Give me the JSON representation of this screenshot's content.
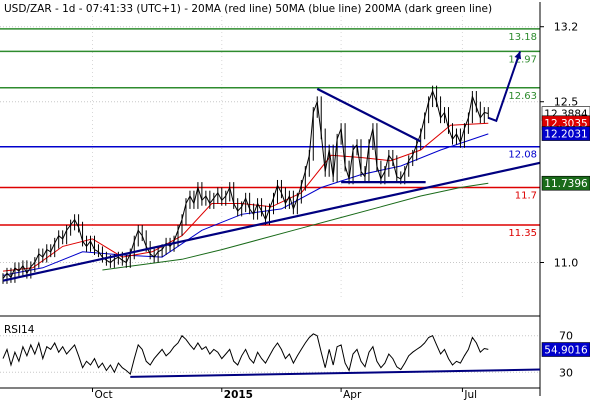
{
  "header": {
    "title": "USD/ZAR - 1d - 07:41:33 (UTC+1) - 20MA (red line) 50MA (blue line) 200MA (dark green line)"
  },
  "chart_data": [
    {
      "type": "candlestick",
      "symbol": "USD/ZAR",
      "timeframe": "1d",
      "ylim": [
        10.65,
        13.3
      ],
      "x_tick_labels": [
        "Oct",
        "2015",
        "Apr",
        "Jul"
      ],
      "y_tick_labels": [
        11.0,
        12.5,
        13.2
      ],
      "horizontal_levels": [
        {
          "value": 13.18,
          "label": "13.18",
          "color": "#2e8b2e"
        },
        {
          "value": 12.97,
          "label": "12.97",
          "color": "#2e8b2e"
        },
        {
          "value": 12.63,
          "label": "12.63",
          "color": "#2e8b2e"
        },
        {
          "value": 12.08,
          "label": "12.08",
          "color": "#0000cc"
        },
        {
          "value": 11.7,
          "label": "11.7",
          "color": "#dd0000"
        },
        {
          "value": 11.35,
          "label": "11.35",
          "color": "#dd0000"
        }
      ],
      "price_boxes": [
        {
          "value": 12.3884,
          "label": "12.3884",
          "bg": "#ffffff",
          "fg": "#000000"
        },
        {
          "value": 12.3035,
          "label": "12.3035",
          "bg": "#dd0000",
          "fg": "#ffffff"
        },
        {
          "value": 12.2031,
          "label": "12.2031",
          "bg": "#0000cc",
          "fg": "#ffffff"
        },
        {
          "value": 11.7396,
          "label": "11.7396",
          "bg": "#1a6b1a",
          "fg": "#ffffff"
        }
      ],
      "price_path": [
        [
          0,
          10.85
        ],
        [
          4,
          10.9
        ],
        [
          8,
          10.86
        ],
        [
          12,
          10.95
        ],
        [
          16,
          10.92
        ],
        [
          20,
          10.97
        ],
        [
          24,
          10.9
        ],
        [
          28,
          10.96
        ],
        [
          32,
          11.0
        ],
        [
          36,
          11.08
        ],
        [
          40,
          11.05
        ],
        [
          44,
          11.12
        ],
        [
          48,
          11.1
        ],
        [
          52,
          11.18
        ],
        [
          56,
          11.25
        ],
        [
          60,
          11.22
        ],
        [
          64,
          11.3
        ],
        [
          68,
          11.35
        ],
        [
          72,
          11.4
        ],
        [
          76,
          11.33
        ],
        [
          80,
          11.2
        ],
        [
          84,
          11.15
        ],
        [
          88,
          11.2
        ],
        [
          92,
          11.12
        ],
        [
          96,
          11.1
        ],
        [
          100,
          11.05
        ],
        [
          104,
          11.02
        ],
        [
          108,
          11.0
        ],
        [
          112,
          11.03
        ],
        [
          116,
          11.05
        ],
        [
          120,
          11.02
        ],
        [
          124,
          11.0
        ],
        [
          128,
          11.08
        ],
        [
          132,
          11.2
        ],
        [
          136,
          11.3
        ],
        [
          140,
          11.25
        ],
        [
          144,
          11.15
        ],
        [
          148,
          11.08
        ],
        [
          152,
          11.05
        ],
        [
          156,
          11.1
        ],
        [
          160,
          11.12
        ],
        [
          164,
          11.18
        ],
        [
          168,
          11.15
        ],
        [
          172,
          11.2
        ],
        [
          176,
          11.3
        ],
        [
          180,
          11.4
        ],
        [
          184,
          11.55
        ],
        [
          188,
          11.62
        ],
        [
          192,
          11.55
        ],
        [
          196,
          11.7
        ],
        [
          200,
          11.58
        ],
        [
          204,
          11.62
        ],
        [
          208,
          11.55
        ],
        [
          212,
          11.6
        ],
        [
          216,
          11.65
        ],
        [
          220,
          11.58
        ],
        [
          224,
          11.62
        ],
        [
          228,
          11.7
        ],
        [
          232,
          11.55
        ],
        [
          236,
          11.48
        ],
        [
          240,
          11.52
        ],
        [
          244,
          11.6
        ],
        [
          248,
          11.5
        ],
        [
          252,
          11.45
        ],
        [
          256,
          11.55
        ],
        [
          260,
          11.48
        ],
        [
          264,
          11.4
        ],
        [
          268,
          11.5
        ],
        [
          272,
          11.6
        ],
        [
          276,
          11.72
        ],
        [
          280,
          11.65
        ],
        [
          284,
          11.55
        ],
        [
          288,
          11.62
        ],
        [
          292,
          11.5
        ],
        [
          296,
          11.6
        ],
        [
          300,
          11.72
        ],
        [
          304,
          11.85
        ],
        [
          308,
          12.0
        ],
        [
          312,
          12.4
        ],
        [
          316,
          12.5
        ],
        [
          320,
          12.2
        ],
        [
          324,
          11.85
        ],
        [
          328,
          12.05
        ],
        [
          332,
          11.8
        ],
        [
          336,
          12.15
        ],
        [
          340,
          12.25
        ],
        [
          344,
          11.9
        ],
        [
          348,
          11.78
        ],
        [
          352,
          12.05
        ],
        [
          356,
          12.1
        ],
        [
          360,
          11.85
        ],
        [
          364,
          11.8
        ],
        [
          368,
          12.1
        ],
        [
          372,
          12.25
        ],
        [
          376,
          11.9
        ],
        [
          380,
          11.78
        ],
        [
          384,
          11.85
        ],
        [
          388,
          12.0
        ],
        [
          392,
          11.95
        ],
        [
          396,
          11.8
        ],
        [
          400,
          11.78
        ],
        [
          404,
          11.85
        ],
        [
          408,
          11.95
        ],
        [
          412,
          12.0
        ],
        [
          416,
          12.1
        ],
        [
          420,
          12.2
        ],
        [
          424,
          12.35
        ],
        [
          428,
          12.5
        ],
        [
          432,
          12.6
        ],
        [
          436,
          12.5
        ],
        [
          440,
          12.35
        ],
        [
          444,
          12.4
        ],
        [
          448,
          12.25
        ],
        [
          452,
          12.15
        ],
        [
          456,
          12.2
        ],
        [
          460,
          12.12
        ],
        [
          464,
          12.25
        ],
        [
          468,
          12.35
        ],
        [
          472,
          12.55
        ],
        [
          476,
          12.45
        ],
        [
          480,
          12.35
        ],
        [
          484,
          12.4
        ],
        [
          488,
          12.39
        ]
      ],
      "ma20": [
        [
          0,
          10.92
        ],
        [
          30,
          10.95
        ],
        [
          60,
          11.15
        ],
        [
          90,
          11.22
        ],
        [
          120,
          11.05
        ],
        [
          150,
          11.1
        ],
        [
          180,
          11.25
        ],
        [
          210,
          11.55
        ],
        [
          240,
          11.55
        ],
        [
          270,
          11.52
        ],
        [
          300,
          11.65
        ],
        [
          330,
          12.0
        ],
        [
          360,
          11.98
        ],
        [
          390,
          11.95
        ],
        [
          420,
          12.05
        ],
        [
          450,
          12.28
        ],
        [
          488,
          12.3
        ]
      ],
      "ma50": [
        [
          0,
          10.88
        ],
        [
          40,
          10.95
        ],
        [
          80,
          11.1
        ],
        [
          120,
          11.07
        ],
        [
          160,
          11.05
        ],
        [
          200,
          11.3
        ],
        [
          240,
          11.45
        ],
        [
          280,
          11.5
        ],
        [
          320,
          11.7
        ],
        [
          360,
          11.82
        ],
        [
          400,
          11.9
        ],
        [
          440,
          12.05
        ],
        [
          488,
          12.2
        ]
      ],
      "ma200": [
        [
          100,
          10.93
        ],
        [
          140,
          10.98
        ],
        [
          180,
          11.03
        ],
        [
          220,
          11.12
        ],
        [
          260,
          11.22
        ],
        [
          300,
          11.32
        ],
        [
          340,
          11.42
        ],
        [
          380,
          11.52
        ],
        [
          420,
          11.62
        ],
        [
          460,
          11.7
        ],
        [
          488,
          11.74
        ]
      ],
      "trendlines": [
        {
          "name": "ascending-support-line",
          "points": [
            [
              0,
              10.83
            ],
            [
              540,
              11.93
            ]
          ],
          "color": "#000080"
        },
        {
          "name": "descending-resistance-line",
          "points": [
            [
              316,
              12.62
            ],
            [
              420,
              12.13
            ]
          ],
          "color": "#000080"
        },
        {
          "name": "horizontal-support-segment",
          "points": [
            [
              340,
              11.75
            ],
            [
              425,
              11.75
            ]
          ],
          "color": "#000080"
        }
      ],
      "projection_arrow": {
        "points": [
          [
            488,
            12.35
          ],
          [
            520,
            12.97
          ]
        ],
        "color": "#000080"
      }
    },
    {
      "type": "line",
      "name": "RSI14",
      "label": "RSI14",
      "ylim": [
        15,
        85
      ],
      "y_tick_labels": [
        30,
        70
      ],
      "last_value": {
        "value": 54.9016,
        "label": "54.9016"
      },
      "series": [
        [
          0,
          45
        ],
        [
          4,
          55
        ],
        [
          8,
          38
        ],
        [
          12,
          52
        ],
        [
          16,
          42
        ],
        [
          20,
          58
        ],
        [
          24,
          48
        ],
        [
          28,
          60
        ],
        [
          32,
          50
        ],
        [
          36,
          62
        ],
        [
          40,
          45
        ],
        [
          44,
          58
        ],
        [
          48,
          55
        ],
        [
          52,
          62
        ],
        [
          56,
          52
        ],
        [
          60,
          58
        ],
        [
          64,
          50
        ],
        [
          68,
          55
        ],
        [
          72,
          60
        ],
        [
          76,
          48
        ],
        [
          80,
          35
        ],
        [
          84,
          42
        ],
        [
          88,
          38
        ],
        [
          92,
          45
        ],
        [
          96,
          35
        ],
        [
          100,
          40
        ],
        [
          104,
          32
        ],
        [
          108,
          38
        ],
        [
          112,
          30
        ],
        [
          116,
          40
        ],
        [
          120,
          35
        ],
        [
          124,
          32
        ],
        [
          128,
          28
        ],
        [
          132,
          45
        ],
        [
          136,
          60
        ],
        [
          140,
          55
        ],
        [
          144,
          42
        ],
        [
          148,
          38
        ],
        [
          152,
          45
        ],
        [
          156,
          50
        ],
        [
          160,
          55
        ],
        [
          164,
          48
        ],
        [
          168,
          52
        ],
        [
          172,
          58
        ],
        [
          176,
          62
        ],
        [
          180,
          70
        ],
        [
          184,
          66
        ],
        [
          188,
          60
        ],
        [
          192,
          55
        ],
        [
          196,
          62
        ],
        [
          200,
          55
        ],
        [
          204,
          58
        ],
        [
          208,
          50
        ],
        [
          212,
          55
        ],
        [
          216,
          52
        ],
        [
          220,
          45
        ],
        [
          224,
          50
        ],
        [
          228,
          55
        ],
        [
          232,
          42
        ],
        [
          236,
          38
        ],
        [
          240,
          48
        ],
        [
          244,
          55
        ],
        [
          248,
          45
        ],
        [
          252,
          40
        ],
        [
          256,
          52
        ],
        [
          260,
          45
        ],
        [
          264,
          40
        ],
        [
          268,
          48
        ],
        [
          272,
          56
        ],
        [
          276,
          62
        ],
        [
          280,
          55
        ],
        [
          284,
          45
        ],
        [
          288,
          50
        ],
        [
          292,
          40
        ],
        [
          296,
          48
        ],
        [
          300,
          55
        ],
        [
          304,
          62
        ],
        [
          308,
          68
        ],
        [
          312,
          72
        ],
        [
          316,
          70
        ],
        [
          320,
          52
        ],
        [
          324,
          35
        ],
        [
          328,
          55
        ],
        [
          332,
          38
        ],
        [
          336,
          58
        ],
        [
          340,
          60
        ],
        [
          344,
          40
        ],
        [
          348,
          32
        ],
        [
          352,
          50
        ],
        [
          356,
          55
        ],
        [
          360,
          42
        ],
        [
          364,
          36
        ],
        [
          368,
          52
        ],
        [
          372,
          58
        ],
        [
          376,
          42
        ],
        [
          380,
          35
        ],
        [
          384,
          40
        ],
        [
          388,
          50
        ],
        [
          392,
          45
        ],
        [
          396,
          36
        ],
        [
          400,
          33
        ],
        [
          404,
          40
        ],
        [
          408,
          48
        ],
        [
          412,
          52
        ],
        [
          416,
          55
        ],
        [
          420,
          58
        ],
        [
          424,
          62
        ],
        [
          428,
          68
        ],
        [
          432,
          70
        ],
        [
          436,
          60
        ],
        [
          440,
          50
        ],
        [
          444,
          55
        ],
        [
          448,
          45
        ],
        [
          452,
          38
        ],
        [
          456,
          42
        ],
        [
          460,
          40
        ],
        [
          464,
          48
        ],
        [
          468,
          55
        ],
        [
          472,
          68
        ],
        [
          476,
          62
        ],
        [
          480,
          52
        ],
        [
          484,
          56
        ],
        [
          488,
          55
        ]
      ],
      "trendline": {
        "points": [
          [
            128,
            25
          ],
          [
            540,
            33
          ]
        ],
        "color": "#000080"
      }
    }
  ]
}
